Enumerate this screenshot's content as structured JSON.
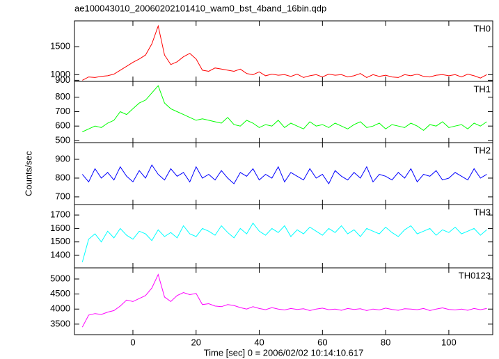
{
  "chart_data": [
    {
      "type": "line",
      "title": "ae100043010_20060202101410_wam0_bst_4band_16bin.qdp",
      "x": [
        -16,
        -14,
        -12,
        -10,
        -8,
        -6,
        -4,
        -2,
        0,
        2,
        4,
        6,
        8,
        10,
        12,
        14,
        16,
        18,
        20,
        22,
        24,
        26,
        28,
        30,
        32,
        34,
        36,
        38,
        40,
        42,
        44,
        46,
        48,
        50,
        52,
        54,
        56,
        58,
        60,
        62,
        64,
        66,
        68,
        70,
        72,
        74,
        76,
        78,
        80,
        82,
        84,
        86,
        88,
        90,
        92,
        94,
        96,
        98,
        100,
        102,
        104,
        106,
        108,
        110,
        112
      ],
      "series": [
        {
          "name": "TH0",
          "color": "#ff0000",
          "values": [
            900,
            960,
            950,
            970,
            980,
            1010,
            1080,
            1150,
            1220,
            1280,
            1350,
            1550,
            1870,
            1350,
            1180,
            1230,
            1320,
            1380,
            1280,
            1080,
            1060,
            1120,
            1100,
            1080,
            1060,
            1100,
            1020,
            1000,
            1050,
            980,
            1010,
            990,
            1000,
            970,
            1010,
            950,
            980,
            1000,
            960,
            1010,
            990,
            1000,
            960,
            980,
            1020,
            950,
            1000,
            970,
            990,
            960,
            950,
            1000,
            980,
            1010,
            970,
            960,
            990,
            1000,
            980,
            1000,
            960,
            1010,
            980,
            940,
            1000
          ]
        }
      ],
      "xlim": [
        -18.5,
        113.9
      ],
      "xticks": [
        0,
        20,
        40,
        60,
        80,
        100
      ],
      "ylim": [
        880,
        1960
      ],
      "yticks": [
        900,
        1000,
        1500
      ]
    },
    {
      "type": "line",
      "x": [
        -16,
        -14,
        -12,
        -10,
        -8,
        -6,
        -4,
        -2,
        0,
        2,
        4,
        6,
        8,
        10,
        12,
        14,
        16,
        18,
        20,
        22,
        24,
        26,
        28,
        30,
        32,
        34,
        36,
        38,
        40,
        42,
        44,
        46,
        48,
        50,
        52,
        54,
        56,
        58,
        60,
        62,
        64,
        66,
        68,
        70,
        72,
        74,
        76,
        78,
        80,
        82,
        84,
        86,
        88,
        90,
        92,
        94,
        96,
        98,
        100,
        102,
        104,
        106,
        108,
        110,
        112
      ],
      "series": [
        {
          "name": "TH1",
          "color": "#00ff00",
          "values": [
            560,
            580,
            600,
            590,
            620,
            640,
            700,
            680,
            720,
            760,
            780,
            830,
            880,
            760,
            720,
            700,
            680,
            660,
            640,
            650,
            640,
            630,
            620,
            660,
            610,
            600,
            640,
            620,
            590,
            610,
            600,
            640,
            590,
            620,
            600,
            580,
            630,
            600,
            610,
            590,
            620,
            600,
            580,
            610,
            630,
            590,
            600,
            620,
            580,
            610,
            600,
            590,
            620,
            600,
            570,
            610,
            600,
            630,
            590,
            600,
            610,
            580,
            620,
            600,
            630
          ]
        }
      ],
      "xlim": [
        -18.5,
        113.9
      ],
      "xticks": [
        0,
        20,
        40,
        60,
        80,
        100
      ],
      "ylim": [
        485,
        910
      ],
      "yticks": [
        500,
        600,
        700,
        800
      ]
    },
    {
      "type": "line",
      "ylabel": "Counts/sec",
      "x": [
        -16,
        -14,
        -12,
        -10,
        -8,
        -6,
        -4,
        -2,
        0,
        2,
        4,
        6,
        8,
        10,
        12,
        14,
        16,
        18,
        20,
        22,
        24,
        26,
        28,
        30,
        32,
        34,
        36,
        38,
        40,
        42,
        44,
        46,
        48,
        50,
        52,
        54,
        56,
        58,
        60,
        62,
        64,
        66,
        68,
        70,
        72,
        74,
        76,
        78,
        80,
        82,
        84,
        86,
        88,
        90,
        92,
        94,
        96,
        98,
        100,
        102,
        104,
        106,
        108,
        110,
        112
      ],
      "series": [
        {
          "name": "TH2",
          "color": "#0000ff",
          "values": [
            820,
            780,
            850,
            800,
            830,
            790,
            860,
            810,
            780,
            840,
            800,
            870,
            820,
            790,
            850,
            810,
            830,
            780,
            860,
            800,
            820,
            790,
            840,
            800,
            770,
            830,
            810,
            850,
            790,
            820,
            800,
            860,
            780,
            830,
            810,
            790,
            850,
            800,
            820,
            770,
            840,
            810,
            790,
            830,
            800,
            860,
            780,
            820,
            810,
            790,
            830,
            800,
            850,
            780,
            820,
            810,
            840,
            790,
            800,
            830,
            810,
            790,
            850,
            800,
            820
          ]
        }
      ],
      "xlim": [
        -18.5,
        113.9
      ],
      "xticks": [
        0,
        20,
        40,
        60,
        80,
        100
      ],
      "ylim": [
        659,
        989
      ],
      "yticks": [
        700,
        800,
        900
      ]
    },
    {
      "type": "line",
      "x": [
        -16,
        -14,
        -12,
        -10,
        -8,
        -6,
        -4,
        -2,
        0,
        2,
        4,
        6,
        8,
        10,
        12,
        14,
        16,
        18,
        20,
        22,
        24,
        26,
        28,
        30,
        32,
        34,
        36,
        38,
        40,
        42,
        44,
        46,
        48,
        50,
        52,
        54,
        56,
        58,
        60,
        62,
        64,
        66,
        68,
        70,
        72,
        74,
        76,
        78,
        80,
        82,
        84,
        86,
        88,
        90,
        92,
        94,
        96,
        98,
        100,
        102,
        104,
        106,
        108,
        110,
        112
      ],
      "series": [
        {
          "name": "TH3",
          "color": "#00ffff",
          "values": [
            1350,
            1520,
            1560,
            1500,
            1580,
            1530,
            1600,
            1550,
            1520,
            1580,
            1560,
            1510,
            1590,
            1540,
            1570,
            1530,
            1620,
            1560,
            1540,
            1600,
            1580,
            1550,
            1620,
            1570,
            1530,
            1600,
            1560,
            1640,
            1580,
            1550,
            1600,
            1570,
            1620,
            1540,
            1590,
            1560,
            1610,
            1580,
            1550,
            1600,
            1570,
            1620,
            1560,
            1590,
            1540,
            1600,
            1580,
            1560,
            1610,
            1570,
            1540,
            1590,
            1620,
            1560,
            1580,
            1600,
            1550,
            1590,
            1570,
            1610,
            1560,
            1580,
            1600,
            1550,
            1590
          ]
        }
      ],
      "xlim": [
        -18.5,
        113.9
      ],
      "xticks": [
        0,
        20,
        40,
        60,
        80,
        100
      ],
      "ylim": [
        1307,
        1778
      ],
      "yticks": [
        1400,
        1500,
        1600,
        1700
      ]
    },
    {
      "type": "line",
      "xlabel": "Time [sec] 0 = 2006/02/02 10:14:10.617",
      "x": [
        -16,
        -14,
        -12,
        -10,
        -8,
        -6,
        -4,
        -2,
        0,
        2,
        4,
        6,
        8,
        10,
        12,
        14,
        16,
        18,
        20,
        22,
        24,
        26,
        28,
        30,
        32,
        34,
        36,
        38,
        40,
        42,
        44,
        46,
        48,
        50,
        52,
        54,
        56,
        58,
        60,
        62,
        64,
        66,
        68,
        70,
        72,
        74,
        76,
        78,
        80,
        82,
        84,
        86,
        88,
        90,
        92,
        94,
        96,
        98,
        100,
        102,
        104,
        106,
        108,
        110,
        112
      ],
      "series": [
        {
          "name": "TH0123",
          "color": "#ff00ff",
          "values": [
            3400,
            3800,
            3850,
            3820,
            3900,
            3950,
            4100,
            4300,
            4250,
            4350,
            4450,
            4700,
            5150,
            4400,
            4250,
            4450,
            4550,
            4480,
            4520,
            4150,
            4180,
            4100,
            4080,
            4150,
            4120,
            4050,
            4000,
            4080,
            4020,
            3980,
            4050,
            4000,
            3970,
            4020,
            3990,
            4010,
            3950,
            4000,
            4030,
            3980,
            4000,
            3960,
            4020,
            3990,
            4010,
            3950,
            4000,
            3970,
            4030,
            3990,
            3960,
            4010,
            4000,
            3980,
            4020,
            3950,
            4000,
            4040,
            3990,
            3970,
            4000,
            3960,
            4020,
            3980,
            4020
          ]
        }
      ],
      "xlim": [
        -18.5,
        113.9
      ],
      "xticks": [
        0,
        20,
        40,
        60,
        80,
        100
      ],
      "ylim": [
        3150,
        5370
      ],
      "yticks": [
        3500,
        4000,
        4500,
        5000
      ]
    }
  ]
}
